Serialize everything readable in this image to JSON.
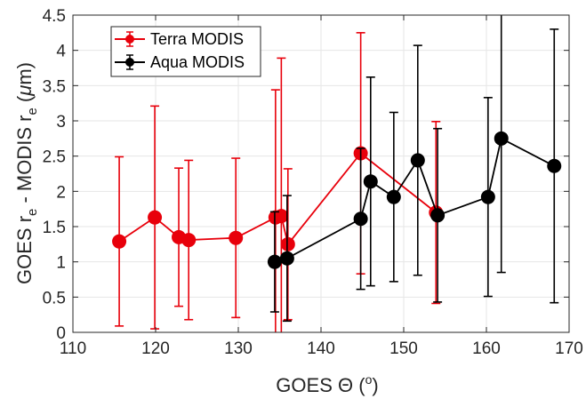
{
  "chart_data": {
    "type": "scatter",
    "xlabel": {
      "main": "GOES ",
      "symbol": "Θ",
      "rest": " (",
      "sup": "o",
      "end": ")"
    },
    "ylabel": {
      "p1": "GOES r",
      "s1": "e",
      "p2": " - MODIS r",
      "s2": "e",
      "p3": " (",
      "mu": "μ",
      "p4": "m)"
    },
    "xlim": [
      110,
      170
    ],
    "ylim": [
      0,
      4.5
    ],
    "xticks": [
      110,
      120,
      130,
      140,
      150,
      160,
      170
    ],
    "yticks": [
      0,
      0.5,
      1,
      1.5,
      2,
      2.5,
      3,
      3.5,
      4,
      4.5
    ],
    "ytick_labels": [
      "0",
      "0.5",
      "1",
      "1.5",
      "2",
      "2.5",
      "3",
      "3.5",
      "4",
      "4.5"
    ],
    "grid": true,
    "legend_position": "top-left",
    "series": [
      {
        "name": "Terra MODIS",
        "color": "#e8000b",
        "x": [
          115.6,
          119.9,
          122.8,
          124.0,
          129.7,
          134.5,
          135.2,
          136.0,
          144.8,
          153.9
        ],
        "y": [
          1.29,
          1.63,
          1.35,
          1.31,
          1.34,
          1.63,
          1.65,
          1.25,
          2.54,
          1.7
        ],
        "err": [
          1.2,
          1.58,
          0.98,
          1.13,
          1.13,
          1.81,
          2.24,
          1.07,
          1.71,
          1.29
        ]
      },
      {
        "name": "Aqua MODIS",
        "color": "#000000",
        "x": [
          134.4,
          135.9,
          144.8,
          146.0,
          148.8,
          151.7,
          154.1,
          160.2,
          161.8,
          168.2
        ],
        "y": [
          1.0,
          1.05,
          1.61,
          2.14,
          1.92,
          2.44,
          1.66,
          1.92,
          2.75,
          2.36
        ],
        "err": [
          0.71,
          0.89,
          1.0,
          1.48,
          1.2,
          1.63,
          1.23,
          1.41,
          1.9,
          1.94
        ]
      }
    ]
  }
}
